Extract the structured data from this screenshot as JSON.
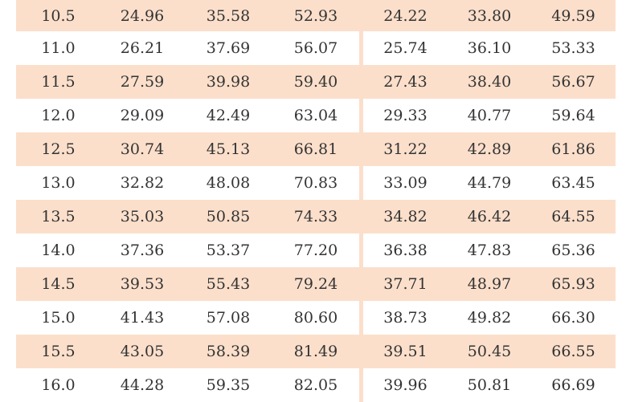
{
  "table": {
    "rows": [
      [
        "10.5",
        "24.96",
        "35.58",
        "52.93",
        "24.22",
        "33.80",
        "49.59"
      ],
      [
        "11.0",
        "26.21",
        "37.69",
        "56.07",
        "25.74",
        "36.10",
        "53.33"
      ],
      [
        "11.5",
        "27.59",
        "39.98",
        "59.40",
        "27.43",
        "38.40",
        "56.67"
      ],
      [
        "12.0",
        "29.09",
        "42.49",
        "63.04",
        "29.33",
        "40.77",
        "59.64"
      ],
      [
        "12.5",
        "30.74",
        "45.13",
        "66.81",
        "31.22",
        "42.89",
        "61.86"
      ],
      [
        "13.0",
        "32.82",
        "48.08",
        "70.83",
        "33.09",
        "44.79",
        "63.45"
      ],
      [
        "13.5",
        "35.03",
        "50.85",
        "74.33",
        "34.82",
        "46.42",
        "64.55"
      ],
      [
        "14.0",
        "37.36",
        "53.37",
        "77.20",
        "36.38",
        "47.83",
        "65.36"
      ],
      [
        "14.5",
        "39.53",
        "55.43",
        "79.24",
        "37.71",
        "48.97",
        "65.93"
      ],
      [
        "15.0",
        "41.43",
        "57.08",
        "80.60",
        "38.73",
        "49.82",
        "66.30"
      ],
      [
        "15.5",
        "43.05",
        "58.39",
        "81.49",
        "39.51",
        "50.45",
        "66.55"
      ],
      [
        "16.0",
        "44.28",
        "59.35",
        "82.05",
        "39.96",
        "50.81",
        "66.69"
      ]
    ],
    "shade_color": "#fbdfcb"
  }
}
